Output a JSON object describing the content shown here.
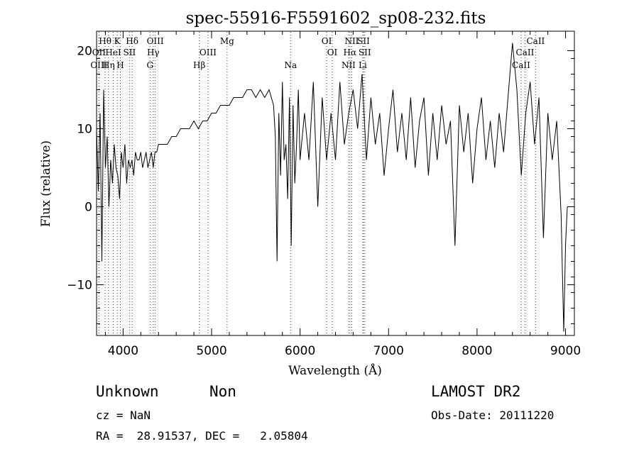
{
  "chart_data": {
    "type": "line",
    "title": "spec-55916-F5591602_sp08-232.fits",
    "xlabel": "Wavelength (Å)",
    "ylabel": "Flux (relative)",
    "xlim": [
      3700,
      9100
    ],
    "ylim": [
      -16.5,
      22.5
    ],
    "xticks": [
      4000,
      5000,
      6000,
      7000,
      8000,
      9000
    ],
    "yticks": [
      -10,
      0,
      10,
      20
    ],
    "line_color": "#000000",
    "marker_color": "#cc0000",
    "series": [
      {
        "x": [
          3700,
          3720,
          3740,
          3760,
          3780,
          3800,
          3820,
          3840,
          3860,
          3880,
          3900,
          3920,
          3940,
          3960,
          3980,
          4000,
          4020,
          4040,
          4060,
          4080,
          4100,
          4120,
          4140,
          4160,
          4180,
          4200,
          4220,
          4240,
          4260,
          4280,
          4300,
          4320,
          4340,
          4360,
          4380,
          4400,
          4450,
          4500,
          4550,
          4600,
          4650,
          4700,
          4750,
          4800,
          4850,
          4900,
          4950,
          5000,
          5050,
          5100,
          5150,
          5200,
          5250,
          5300,
          5350,
          5400,
          5450,
          5500,
          5550,
          5600,
          5650,
          5700,
          5720,
          5740,
          5760,
          5780,
          5800,
          5820,
          5840,
          5860,
          5880,
          5900,
          5920,
          5940,
          5960,
          5980,
          6000,
          6050,
          6100,
          6150,
          6200,
          6250,
          6300,
          6350,
          6400,
          6450,
          6500,
          6550,
          6600,
          6650,
          6700,
          6750,
          6800,
          6850,
          6900,
          6950,
          7000,
          7050,
          7100,
          7150,
          7200,
          7250,
          7300,
          7350,
          7400,
          7450,
          7500,
          7550,
          7600,
          7650,
          7700,
          7750,
          7800,
          7850,
          7900,
          7950,
          8000,
          8050,
          8100,
          8150,
          8200,
          8250,
          8300,
          8350,
          8400,
          8450,
          8500,
          8550,
          8600,
          8650,
          8700,
          8750,
          8800,
          8850,
          8900,
          8950,
          8980,
          9000,
          9020
        ],
        "y": [
          10,
          2,
          12,
          -7,
          15,
          5,
          9,
          0,
          6,
          3,
          8,
          5,
          4,
          1,
          7,
          5,
          8,
          3,
          6,
          5,
          6,
          4,
          7,
          6,
          6,
          7,
          5,
          6,
          7,
          5,
          6,
          7,
          5,
          7,
          7,
          8,
          8,
          8,
          9,
          9,
          10,
          10,
          10,
          11,
          10,
          11,
          11,
          12,
          12,
          13,
          13,
          13,
          14,
          14,
          14,
          15,
          15,
          14,
          15,
          14,
          15,
          13,
          9,
          -7,
          12,
          4,
          16,
          6,
          8,
          1,
          14,
          -5,
          13,
          3,
          8,
          15,
          6,
          12,
          6,
          16,
          0,
          14,
          6,
          12,
          6,
          16,
          8,
          12,
          15,
          10,
          17,
          6,
          14,
          8,
          12,
          4,
          10,
          15,
          7,
          12,
          6,
          14,
          5,
          11,
          14,
          4,
          12,
          6,
          13,
          8,
          11,
          -5,
          13,
          7,
          12,
          3,
          10,
          14,
          6,
          11,
          5,
          12,
          7,
          14,
          21,
          15,
          4,
          12,
          16,
          8,
          14,
          -4,
          12,
          6,
          11,
          -1,
          -16,
          -5,
          0
        ],
        "name": ""
      }
    ],
    "line_markers": [
      {
        "label": "Hθ",
        "x": 3797,
        "row": 0
      },
      {
        "label": "K",
        "x": 3934,
        "row": 0
      },
      {
        "label": "Hδ",
        "x": 4102,
        "row": 0
      },
      {
        "label": "OIII",
        "x": 4363,
        "row": 0
      },
      {
        "label": "Mg",
        "x": 5175,
        "row": 0
      },
      {
        "label": "OI",
        "x": 6300,
        "row": 0
      },
      {
        "label": "NII",
        "x": 6584,
        "row": 0
      },
      {
        "label": "SII",
        "x": 6717,
        "row": 0
      },
      {
        "label": "CaII",
        "x": 8662,
        "row": 0
      },
      {
        "label": "OII",
        "x": 3727,
        "row": 1
      },
      {
        "label": "HeI",
        "x": 3889,
        "row": 1
      },
      {
        "label": "SII",
        "x": 4072,
        "row": 1
      },
      {
        "label": "Hγ",
        "x": 4340,
        "row": 1
      },
      {
        "label": "OIII",
        "x": 4959,
        "row": 1
      },
      {
        "label": "OI",
        "x": 6364,
        "row": 1
      },
      {
        "label": "Hα",
        "x": 6563,
        "row": 1
      },
      {
        "label": "SII",
        "x": 6731,
        "row": 1
      },
      {
        "label": "CaII",
        "x": 8542,
        "row": 1
      },
      {
        "label": "OIII",
        "x": 3727,
        "row": 2
      },
      {
        "label": "Hη",
        "x": 3835,
        "row": 2
      },
      {
        "label": "H",
        "x": 3969,
        "row": 2
      },
      {
        "label": "G",
        "x": 4304,
        "row": 2
      },
      {
        "label": "Hβ",
        "x": 4861,
        "row": 2
      },
      {
        "label": "Na",
        "x": 5893,
        "row": 2
      },
      {
        "label": "NII",
        "x": 6548,
        "row": 2
      },
      {
        "label": "Li",
        "x": 6708,
        "row": 2
      },
      {
        "label": "CaII",
        "x": 8498,
        "row": 2
      }
    ]
  },
  "info": {
    "class_label": "Unknown",
    "subclass_label": "Non",
    "survey": "LAMOST DR2",
    "cz_text": "cz = NaN",
    "obs_date_text": "Obs-Date: 20111220",
    "radec_text": "RA =  28.91537, DEC =   2.05804"
  }
}
